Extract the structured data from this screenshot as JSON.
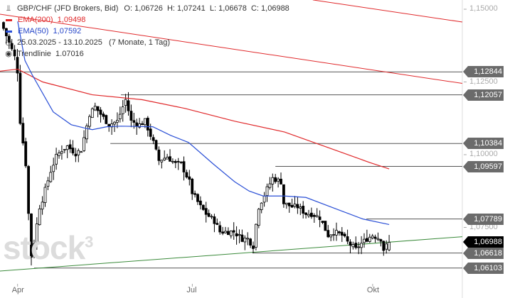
{
  "legend": {
    "instrument": "GBP/CHF (JFD Brokers, Bid)",
    "ohlc": "O: 1,06726  H: 1,07241  L: 1,06678  C: 1,06988",
    "ema200_label": "EMA(200)",
    "ema200_value": "1,09498",
    "ema50_label": "EMA(50)",
    "ema50_value": "1,07592",
    "range": "25.03.2025 - 13.10.2025   (7 Monate, 1 Tag)",
    "trend_label": "Trendlinie",
    "trend_value": "1.07016"
  },
  "watermark": "stock3",
  "colors": {
    "ema200": "#e0282a",
    "ema50": "#2a4fd6",
    "trend": "#3a8a3a",
    "level": "#555555"
  },
  "chart_data": {
    "type": "candlestick",
    "title": "GBP/CHF (JFD Brokers, Bid)",
    "ylim": [
      1.058,
      1.153
    ],
    "y_ticks": [
      {
        "v": 1.15,
        "label": "1,15000"
      },
      {
        "v": 1.125,
        "label": "1,12500"
      },
      {
        "v": 1.1,
        "label": "1,10000"
      },
      {
        "v": 1.075,
        "label": "1,07500"
      }
    ],
    "x_ticks": [
      {
        "bar": 3,
        "label": "Apr"
      },
      {
        "bar": 66,
        "label": "Jul"
      },
      {
        "bar": 131,
        "label": "Okt"
      }
    ],
    "bars": 140,
    "close_waypoints": [
      [
        0,
        1.1434
      ],
      [
        4,
        1.1336
      ],
      [
        5,
        1.1287
      ],
      [
        6,
        1.1115
      ],
      [
        8,
        1.0968
      ],
      [
        9,
        1.0797
      ],
      [
        10,
        1.065
      ],
      [
        11,
        1.0699
      ],
      [
        13,
        1.0821
      ],
      [
        14,
        1.0846
      ],
      [
        17,
        1.0944
      ],
      [
        19,
        1.0993
      ],
      [
        21,
        1.1017
      ],
      [
        23,
        1.1029
      ],
      [
        26,
        1.1005
      ],
      [
        28,
        1.1017
      ],
      [
        31,
        1.114
      ],
      [
        33,
        1.1164
      ],
      [
        36,
        1.1127
      ],
      [
        38,
        1.1103
      ],
      [
        41,
        1.1115
      ],
      [
        44,
        1.1189
      ],
      [
        46,
        1.1115
      ],
      [
        49,
        1.1103
      ],
      [
        51,
        1.1115
      ],
      [
        54,
        1.1042
      ],
      [
        56,
        1.098
      ],
      [
        59,
        1.0993
      ],
      [
        62,
        1.0968
      ],
      [
        64,
        1.0968
      ],
      [
        67,
        1.0907
      ],
      [
        68,
        1.087
      ],
      [
        71,
        1.0821
      ],
      [
        73,
        1.0797
      ],
      [
        76,
        1.0772
      ],
      [
        78,
        1.0735
      ],
      [
        81,
        1.0735
      ],
      [
        83,
        1.0735
      ],
      [
        86,
        1.0711
      ],
      [
        88,
        1.0711
      ],
      [
        90,
        1.0686
      ],
      [
        91,
        1.076
      ],
      [
        92,
        1.0821
      ],
      [
        95,
        1.0882
      ],
      [
        97,
        1.0919
      ],
      [
        100,
        1.0907
      ],
      [
        101,
        1.0833
      ],
      [
        104,
        1.0821
      ],
      [
        106,
        1.0821
      ],
      [
        109,
        1.0797
      ],
      [
        111,
        1.0797
      ],
      [
        114,
        1.0784
      ],
      [
        117,
        1.0723
      ],
      [
        119,
        1.0735
      ],
      [
        122,
        1.0723
      ],
      [
        124,
        1.0699
      ],
      [
        127,
        1.0674
      ],
      [
        128,
        1.0686
      ],
      [
        131,
        1.0711
      ],
      [
        133,
        1.0723
      ],
      [
        136,
        1.0711
      ],
      [
        137,
        1.0674
      ],
      [
        139,
        1.06988
      ]
    ],
    "last_candle": {
      "open": 1.06726,
      "high": 1.07241,
      "low": 1.06678,
      "close": 1.06988
    },
    "ema200": [
      [
        -1.3,
        1.1287
      ],
      [
        5.1,
        1.1294
      ],
      [
        14.1,
        1.125
      ],
      [
        32,
        1.1206
      ],
      [
        50,
        1.1189
      ],
      [
        65.4,
        1.1159
      ],
      [
        83.3,
        1.1115
      ],
      [
        101.3,
        1.1078
      ],
      [
        119.2,
        1.1017
      ],
      [
        132,
        1.0973
      ],
      [
        139,
        1.0951
      ]
    ],
    "ema50": [
      [
        5.1,
        1.1458
      ],
      [
        7.7,
        1.1324
      ],
      [
        10.3,
        1.1275
      ],
      [
        17.9,
        1.1147
      ],
      [
        24.4,
        1.1103
      ],
      [
        29.5,
        1.1091
      ],
      [
        32,
        1.1086
      ],
      [
        37.2,
        1.1096
      ],
      [
        42.3,
        1.1098
      ],
      [
        53.8,
        1.1096
      ],
      [
        60.3,
        1.1066
      ],
      [
        66.7,
        1.1042
      ],
      [
        75.6,
        1.0968
      ],
      [
        83.3,
        1.0907
      ],
      [
        88.5,
        1.0875
      ],
      [
        93.6,
        1.0858
      ],
      [
        101.3,
        1.0858
      ],
      [
        109,
        1.0853
      ],
      [
        119.2,
        1.0816
      ],
      [
        129.5,
        1.0779
      ],
      [
        139,
        1.076
      ]
    ],
    "trendlines": [
      {
        "name": "resistance-upper",
        "color": "#e0282a",
        "from": [
          111.5,
          1.1532
        ],
        "to": [
          165.4,
          1.1456
        ]
      },
      {
        "name": "resistance-lower",
        "color": "#e0282a",
        "from": [
          -1.3,
          1.1483
        ],
        "to": [
          165.4,
          1.1245
        ]
      },
      {
        "name": "support-trend",
        "color": "#3a8a3a",
        "from": [
          -1.3,
          1.06
        ],
        "to": [
          165.4,
          1.0718
        ]
      }
    ],
    "levels": [
      {
        "value": 1.12844,
        "label": "1,12844",
        "start": -1.3
      },
      {
        "value": 1.12057,
        "label": "1,12057",
        "start": 42.3
      },
      {
        "value": 1.10384,
        "label": "1,10384",
        "start": 38.5
      },
      {
        "value": 1.09597,
        "label": "1,09597",
        "start": 98
      },
      {
        "value": 1.07789,
        "label": "1,07789",
        "start": 130.8
      },
      {
        "value": 1.06618,
        "label": "1,06618",
        "start": 89.7
      },
      {
        "value": 1.06103,
        "label": "1,06103",
        "start": 11
      }
    ],
    "current": {
      "value": 1.06988,
      "label": "1,06988"
    }
  }
}
